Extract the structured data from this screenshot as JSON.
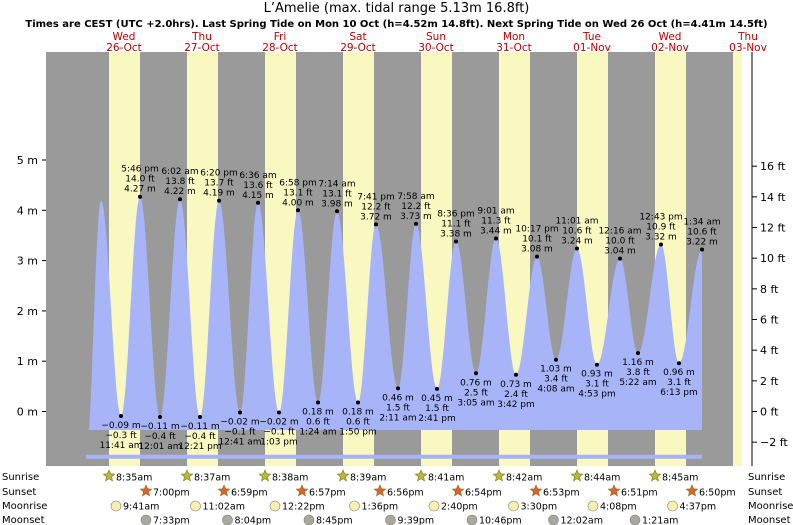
{
  "chart_data": {
    "type": "area",
    "title": "L’Amelie (max. tidal range 5.13m 16.8ft)",
    "subtitle": "Times are CEST (UTC +2.0hrs). Last Spring Tide on Mon 10 Oct (h=4.52m 14.8ft). Next Spring Tide on Wed 26 Oct (h=4.41m 14.5ft)",
    "days": [
      {
        "weekday": "Wed",
        "date": "26-Oct"
      },
      {
        "weekday": "Thu",
        "date": "27-Oct"
      },
      {
        "weekday": "Fri",
        "date": "28-Oct"
      },
      {
        "weekday": "Sat",
        "date": "29-Oct"
      },
      {
        "weekday": "Sun",
        "date": "30-Oct"
      },
      {
        "weekday": "Mon",
        "date": "31-Oct"
      },
      {
        "weekday": "Tue",
        "date": "01-Nov"
      },
      {
        "weekday": "Wed",
        "date": "02-Nov"
      },
      {
        "weekday": "Thu",
        "date": "03-Nov"
      }
    ],
    "y_left_ticks": [
      "5 m",
      "4 m",
      "3 m",
      "2 m",
      "1 m",
      "0 m"
    ],
    "y_right_ticks": [
      "16 ft",
      "14 ft",
      "12 ft",
      "10 ft",
      "8 ft",
      "6 ft",
      "4 ft",
      "2 ft",
      "0 ft",
      "−2 ft"
    ],
    "ylim_m": [
      -0.9,
      5.3
    ],
    "tides": [
      {
        "time": "5:46 pm",
        "m": 4.27,
        "ft": "14.0 ft",
        "m_label": "4.27 m"
      },
      {
        "time": "6:02 am",
        "m": 4.22,
        "ft": "13.8 ft",
        "m_label": "4.22 m"
      },
      {
        "time": "6:20 pm",
        "m": 4.19,
        "ft": "13.7 ft",
        "m_label": "4.19 m"
      },
      {
        "time": "6:36 am",
        "m": 4.15,
        "ft": "13.6 ft",
        "m_label": "4.15 m"
      },
      {
        "time": "6:58 pm",
        "m": 4.0,
        "ft": "13.1 ft",
        "m_label": "4.00 m"
      },
      {
        "time": "7:14 am",
        "m": 3.98,
        "ft": "13.1 ft",
        "m_label": "3.98 m"
      },
      {
        "time": "7:41 pm",
        "m": 3.72,
        "ft": "12.2 ft",
        "m_label": "3.72 m"
      },
      {
        "time": "7:58 am",
        "m": 3.73,
        "ft": "12.2 ft",
        "m_label": "3.73 m"
      },
      {
        "time": "8:36 pm",
        "m": 3.38,
        "ft": "11.1 ft",
        "m_label": "3.38 m"
      },
      {
        "time": "9:01 am",
        "m": 3.44,
        "ft": "11.3 ft",
        "m_label": "3.44 m"
      },
      {
        "time": "10:17 pm",
        "m": 3.08,
        "ft": "10.1 ft",
        "m_label": "3.08 m"
      },
      {
        "time": "11:01 am",
        "m": 3.24,
        "ft": "10.6 ft",
        "m_label": "3.24 m"
      },
      {
        "time": "12:16 am",
        "m": 3.04,
        "ft": "10.0 ft",
        "m_label": "3.04 m"
      },
      {
        "time": "12:43 pm",
        "m": 3.32,
        "ft": "10.9 ft",
        "m_label": "3.32 m"
      },
      {
        "time": "1:34 am",
        "m": 3.22,
        "ft": "10.6 ft",
        "m_label": "3.22 m"
      },
      {
        "time": "11:41 am",
        "m": -0.09,
        "ft": "−0.3 ft",
        "m_label": "−0.09 m"
      },
      {
        "time": "12:01 am",
        "m": -0.11,
        "ft": "−0.4 ft",
        "m_label": "−0.11 m"
      },
      {
        "time": "12:21 pm",
        "m": -0.11,
        "ft": "−0.4 ft",
        "m_label": "−0.11 m"
      },
      {
        "time": "12:41 am",
        "m": -0.02,
        "ft": "−0.1 ft",
        "m_label": "−0.02 m"
      },
      {
        "time": "1:03 pm",
        "m": -0.02,
        "ft": "−0.1 ft",
        "m_label": "−0.02 m"
      },
      {
        "time": "1:24 am",
        "m": 0.18,
        "ft": "0.6 ft",
        "m_label": "0.18 m"
      },
      {
        "time": "1:50 pm",
        "m": 0.18,
        "ft": "0.6 ft",
        "m_label": "0.18 m"
      },
      {
        "time": "2:11 am",
        "m": 0.46,
        "ft": "1.5 ft",
        "m_label": "0.46 m"
      },
      {
        "time": "2:41 pm",
        "m": 0.45,
        "ft": "1.5 ft",
        "m_label": "0.45 m"
      },
      {
        "time": "3:05 am",
        "m": 0.76,
        "ft": "2.5 ft",
        "m_label": "0.76 m"
      },
      {
        "time": "3:42 pm",
        "m": 0.73,
        "ft": "2.4 ft",
        "m_label": "0.73 m"
      },
      {
        "time": "4:08 am",
        "m": 1.03,
        "ft": "3.4 ft",
        "m_label": "1.03 m"
      },
      {
        "time": "4:53 pm",
        "m": 0.93,
        "ft": "3.1 ft",
        "m_label": "0.93 m"
      },
      {
        "time": "5:22 am",
        "m": 1.16,
        "ft": "3.8 ft",
        "m_label": "1.16 m"
      },
      {
        "time": "6:13 pm",
        "m": 0.96,
        "ft": "3.1 ft",
        "m_label": "0.96 m"
      }
    ],
    "sunrise_times": [
      "8:35am",
      "8:37am",
      "8:38am",
      "8:39am",
      "8:41am",
      "8:42am",
      "8:44am",
      "8:45am"
    ],
    "sunset_times": [
      "7:00pm",
      "6:59pm",
      "6:57pm",
      "6:56pm",
      "6:54pm",
      "6:53pm",
      "6:51pm",
      "6:50pm"
    ],
    "moonrise_times": [
      "9:41am",
      "11:02am",
      "12:22pm",
      "1:36pm",
      "2:40pm",
      "3:30pm",
      "4:08pm",
      "4:37pm"
    ],
    "moonset_times": [
      "7:33pm",
      "8:04pm",
      "8:45pm",
      "9:39pm",
      "10:46pm",
      "12:02am",
      "1:21am"
    ],
    "row_labels": {
      "sunrise": "Sunrise",
      "sunset": "Sunset",
      "moonrise": "Moonrise",
      "moonset": "Moonset"
    },
    "colors": {
      "water": "#a8b4f8",
      "night": "#9a9a9a",
      "day": "#f8f8c0",
      "day_label": "#c00000",
      "sun_star": "#b8b83a",
      "sunset_star": "#e06030",
      "moon_rise": "#f8f0b0",
      "moon_set": "#a8a8a0"
    }
  }
}
